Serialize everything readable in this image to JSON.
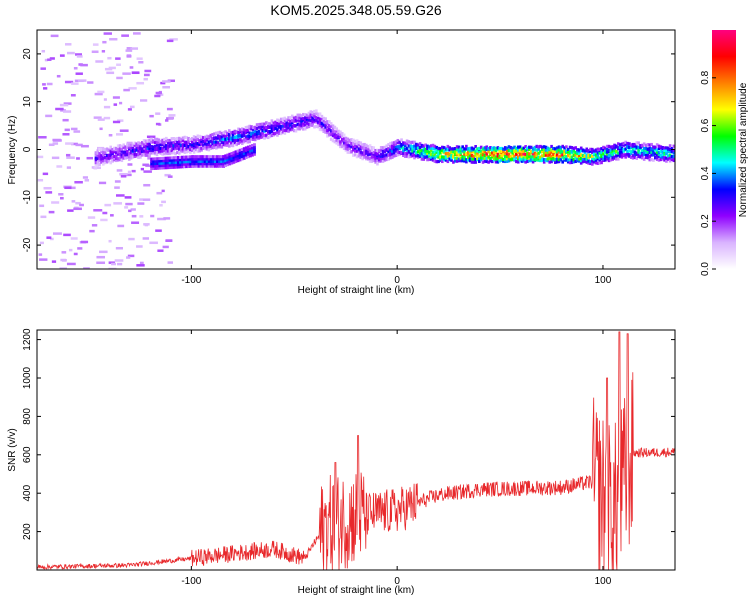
{
  "title": "KOM5.2025.348.05.59.G26",
  "chart_data": [
    {
      "type": "heatmap",
      "name": "spectrogram",
      "xlabel": "Height of straight line (km)",
      "ylabel": "Frequency (Hz)",
      "xlim": [
        -175,
        135
      ],
      "ylim": [
        -25,
        25
      ],
      "xticks": [
        -100,
        0,
        100
      ],
      "yticks": [
        -20,
        -10,
        0,
        10,
        20
      ],
      "colorbar": {
        "label": "Normalized spectral amplitude",
        "range": [
          0,
          1
        ],
        "ticks": [
          "0.0",
          "0.2",
          "0.4",
          "0.6",
          "0.8"
        ],
        "colors": [
          "#ffffff",
          "#d9b3ff",
          "#8f00ff",
          "#0000ff",
          "#00ffff",
          "#00ff00",
          "#ffff00",
          "#ff8000",
          "#ff0000",
          "#ff007f"
        ]
      },
      "ridge": [
        {
          "x": -150,
          "f": -2,
          "a": 0.25
        },
        {
          "x": -120,
          "f": 0.5,
          "a": 0.35
        },
        {
          "x": -100,
          "f": 1,
          "a": 0.3
        },
        {
          "x": -80,
          "f": 2.5,
          "a": 0.4
        },
        {
          "x": -60,
          "f": 4.5,
          "a": 0.35
        },
        {
          "x": -40,
          "f": 6.5,
          "a": 0.3
        },
        {
          "x": -25,
          "f": 1,
          "a": 0.25
        },
        {
          "x": -10,
          "f": -1.5,
          "a": 0.3
        },
        {
          "x": 0,
          "f": 0.5,
          "a": 0.4
        },
        {
          "x": 20,
          "f": -1,
          "a": 0.7
        },
        {
          "x": 50,
          "f": -1,
          "a": 0.9
        },
        {
          "x": 80,
          "f": -1,
          "a": 0.85
        },
        {
          "x": 95,
          "f": -1.5,
          "a": 0.6
        },
        {
          "x": 110,
          "f": 0,
          "a": 0.5
        },
        {
          "x": 135,
          "f": -1,
          "a": 0.5
        }
      ],
      "lower_branch": [
        {
          "x": -120,
          "f": -3
        },
        {
          "x": -100,
          "f": -2.5
        },
        {
          "x": -85,
          "f": -2.5
        },
        {
          "x": -70,
          "f": 0
        }
      ]
    },
    {
      "type": "line",
      "name": "snr",
      "xlabel": "Height of straight line (km)",
      "ylabel": "SNR (v/v)",
      "xlim": [
        -175,
        135
      ],
      "ylim": [
        0,
        1250
      ],
      "xticks": [
        -100,
        0,
        100
      ],
      "yticks": [
        200,
        400,
        600,
        800,
        1000,
        1200
      ],
      "color": "#e8282b",
      "trend": [
        {
          "x": -175,
          "y": 15
        },
        {
          "x": -130,
          "y": 25
        },
        {
          "x": -100,
          "y": 60
        },
        {
          "x": -60,
          "y": 110
        },
        {
          "x": -45,
          "y": 60
        },
        {
          "x": -35,
          "y": 230
        },
        {
          "x": -20,
          "y": 280
        },
        {
          "x": 0,
          "y": 310
        },
        {
          "x": 20,
          "y": 390
        },
        {
          "x": 40,
          "y": 420
        },
        {
          "x": 60,
          "y": 425
        },
        {
          "x": 80,
          "y": 430
        },
        {
          "x": 95,
          "y": 460
        },
        {
          "x": 105,
          "y": 300
        },
        {
          "x": 115,
          "y": 610
        },
        {
          "x": 135,
          "y": 615
        }
      ],
      "peaks": [
        {
          "x": -30,
          "y": 560
        },
        {
          "x": -19,
          "y": 700
        },
        {
          "x": 102,
          "y": 1000
        },
        {
          "x": 108,
          "y": 1240
        },
        {
          "x": 112,
          "y": 1230
        }
      ]
    }
  ]
}
